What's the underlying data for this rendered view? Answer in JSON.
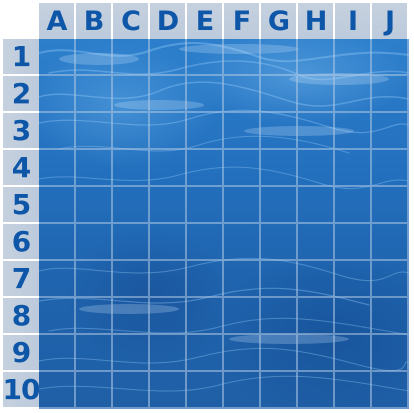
{
  "board": {
    "columns": [
      "A",
      "B",
      "C",
      "D",
      "E",
      "F",
      "G",
      "H",
      "I",
      "J"
    ],
    "rows": [
      "1",
      "2",
      "3",
      "4",
      "5",
      "6",
      "7",
      "8",
      "9",
      "10"
    ],
    "header_text_color": "#0d56a8",
    "header_background": "#c3cfdd",
    "water_color": "#2370be"
  }
}
